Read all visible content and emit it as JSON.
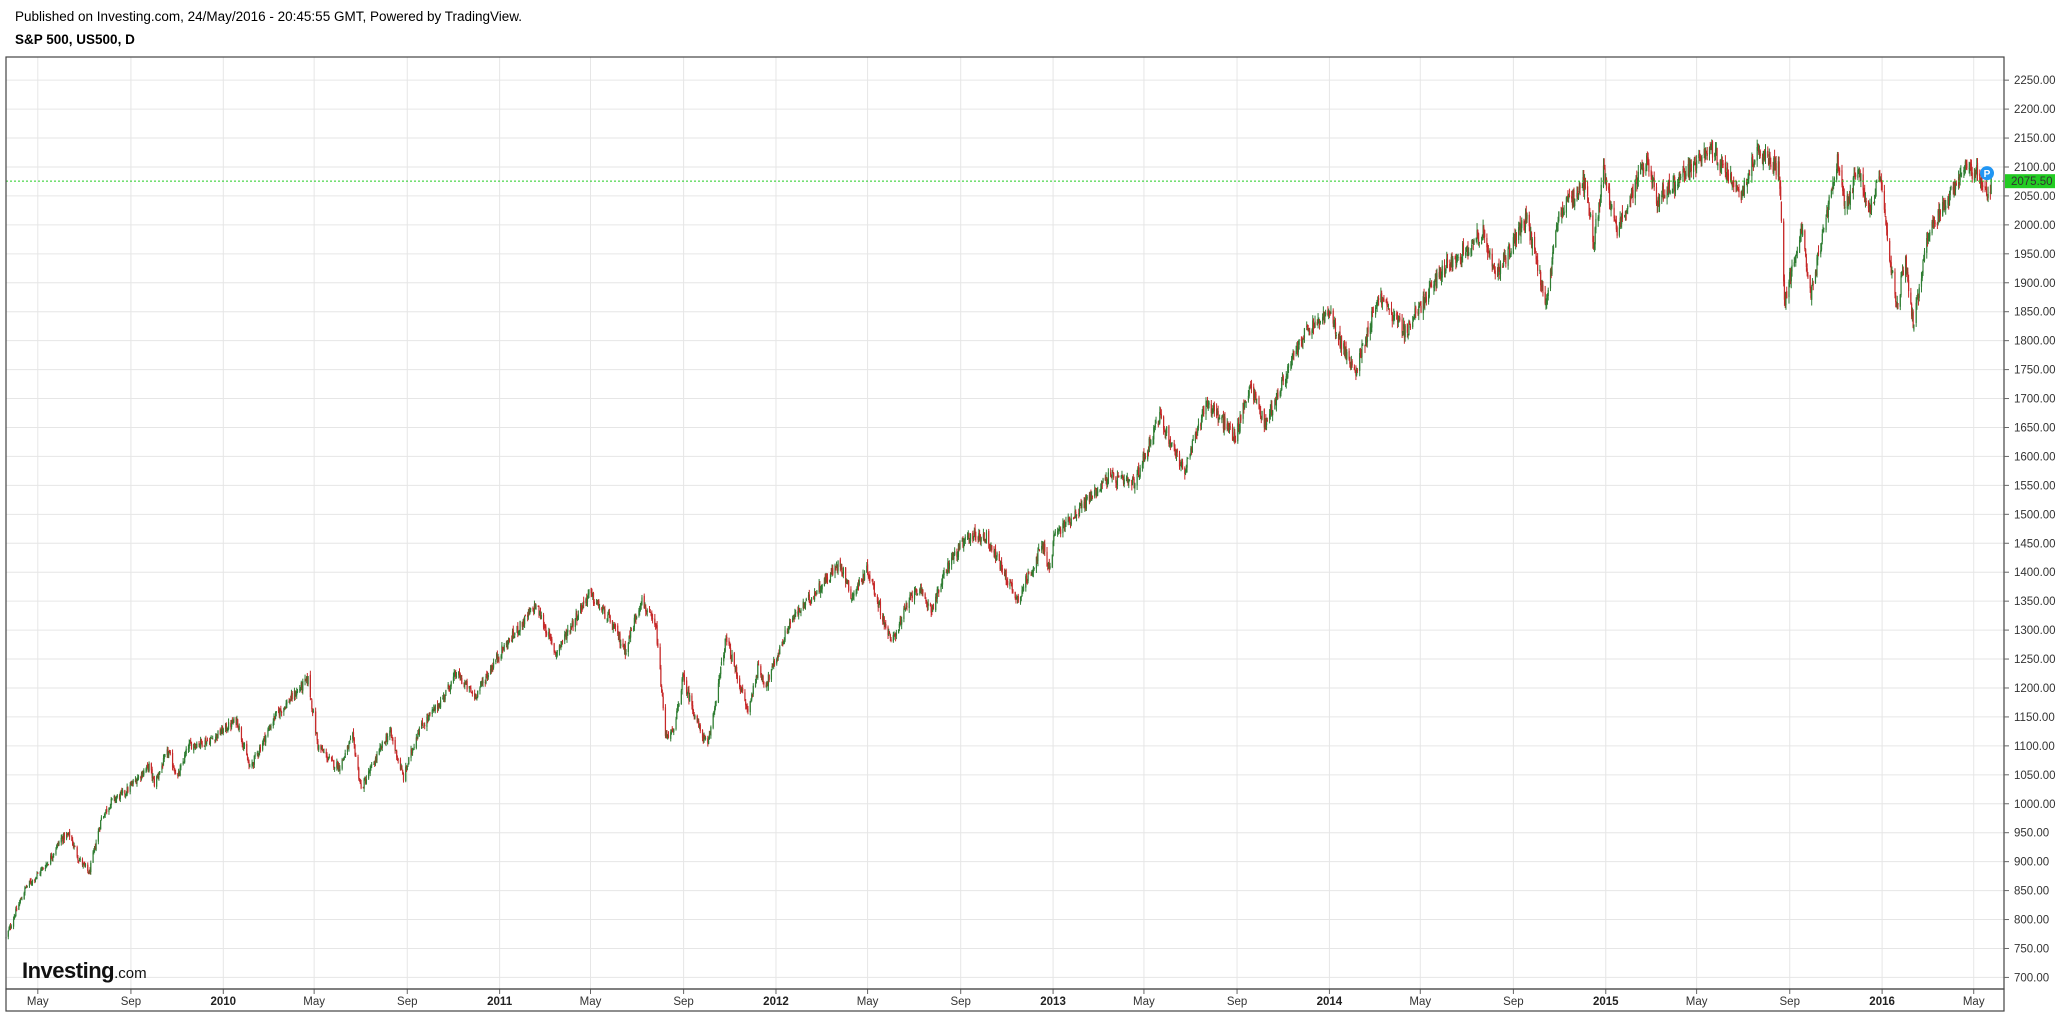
{
  "header": {
    "published": "Published on Investing.com, 24/May/2016 - 20:45:55 GMT, Powered by TradingView.",
    "symbol": "S&P 500, US500, D"
  },
  "logo": {
    "main": "Investing",
    "suffix": ".com"
  },
  "colors": {
    "up": "#2e7d32",
    "down": "#c62828",
    "last_line": "#22cc22",
    "price_tag": "#22cc22",
    "marker": "#2196f3",
    "grid": "#e6e6e6"
  },
  "chart_data": {
    "type": "candlestick",
    "title": "S&P 500, US500, D",
    "last_price": 2075.5,
    "last_price_label": "2075.50",
    "marker_label": "P",
    "ylim": [
      680,
      2290
    ],
    "y_ticks": [
      "700.00",
      "750.00",
      "800.00",
      "850.00",
      "900.00",
      "950.00",
      "1000.00",
      "1050.00",
      "1100.00",
      "1150.00",
      "1200.00",
      "1250.00",
      "1300.00",
      "1350.00",
      "1400.00",
      "1450.00",
      "1500.00",
      "1550.00",
      "1600.00",
      "1650.00",
      "1700.00",
      "1750.00",
      "1800.00",
      "1850.00",
      "1900.00",
      "1950.00",
      "2000.00",
      "2050.00",
      "2100.00",
      "2150.00",
      "2200.00",
      "2250.00"
    ],
    "x_range": [
      "2009-03-20",
      "2016-06-10"
    ],
    "x_ticks": [
      {
        "label": "May",
        "date": "2009-05-01",
        "year": false
      },
      {
        "label": "Sep",
        "date": "2009-09-01",
        "year": false
      },
      {
        "label": "2010",
        "date": "2010-01-01",
        "year": true
      },
      {
        "label": "May",
        "date": "2010-05-01",
        "year": false
      },
      {
        "label": "Sep",
        "date": "2010-09-01",
        "year": false
      },
      {
        "label": "2011",
        "date": "2011-01-01",
        "year": true
      },
      {
        "label": "May",
        "date": "2011-05-01",
        "year": false
      },
      {
        "label": "Sep",
        "date": "2011-09-01",
        "year": false
      },
      {
        "label": "2012",
        "date": "2012-01-01",
        "year": true
      },
      {
        "label": "May",
        "date": "2012-05-01",
        "year": false
      },
      {
        "label": "Sep",
        "date": "2012-09-01",
        "year": false
      },
      {
        "label": "2013",
        "date": "2013-01-01",
        "year": true
      },
      {
        "label": "May",
        "date": "2013-05-01",
        "year": false
      },
      {
        "label": "Sep",
        "date": "2013-09-01",
        "year": false
      },
      {
        "label": "2014",
        "date": "2014-01-01",
        "year": true
      },
      {
        "label": "May",
        "date": "2014-05-01",
        "year": false
      },
      {
        "label": "Sep",
        "date": "2014-09-01",
        "year": false
      },
      {
        "label": "2015",
        "date": "2015-01-01",
        "year": true
      },
      {
        "label": "May",
        "date": "2015-05-01",
        "year": false
      },
      {
        "label": "Sep",
        "date": "2015-09-01",
        "year": false
      },
      {
        "label": "2016",
        "date": "2016-01-01",
        "year": true
      },
      {
        "label": "May",
        "date": "2016-05-01",
        "year": false
      }
    ],
    "close_path": [
      [
        "2009-03-20",
        768
      ],
      [
        "2009-04-01",
        810
      ],
      [
        "2009-04-15",
        855
      ],
      [
        "2009-05-01",
        878
      ],
      [
        "2009-05-15",
        900
      ],
      [
        "2009-06-01",
        940
      ],
      [
        "2009-06-12",
        946
      ],
      [
        "2009-06-24",
        905
      ],
      [
        "2009-07-08",
        880
      ],
      [
        "2009-07-24",
        975
      ],
      [
        "2009-08-07",
        1005
      ],
      [
        "2009-08-25",
        1020
      ],
      [
        "2009-09-10",
        1045
      ],
      [
        "2009-09-25",
        1065
      ],
      [
        "2009-10-02",
        1035
      ],
      [
        "2009-10-20",
        1090
      ],
      [
        "2009-11-02",
        1045
      ],
      [
        "2009-11-16",
        1100
      ],
      [
        "2009-12-15",
        1110
      ],
      [
        "2010-01-19",
        1145
      ],
      [
        "2010-02-05",
        1060
      ],
      [
        "2010-03-10",
        1150
      ],
      [
        "2010-04-23",
        1215
      ],
      [
        "2010-05-06",
        1100
      ],
      [
        "2010-05-25",
        1070
      ],
      [
        "2010-06-04",
        1065
      ],
      [
        "2010-06-21",
        1115
      ],
      [
        "2010-07-02",
        1025
      ],
      [
        "2010-07-30",
        1100
      ],
      [
        "2010-08-09",
        1125
      ],
      [
        "2010-08-27",
        1045
      ],
      [
        "2010-09-15",
        1125
      ],
      [
        "2010-10-15",
        1176
      ],
      [
        "2010-11-05",
        1225
      ],
      [
        "2010-11-29",
        1185
      ],
      [
        "2010-12-31",
        1258
      ],
      [
        "2011-02-18",
        1343
      ],
      [
        "2011-03-16",
        1260
      ],
      [
        "2011-04-29",
        1363
      ],
      [
        "2011-05-25",
        1320
      ],
      [
        "2011-06-16",
        1265
      ],
      [
        "2011-07-07",
        1353
      ],
      [
        "2011-07-27",
        1300
      ],
      [
        "2011-08-08",
        1119
      ],
      [
        "2011-08-19",
        1123
      ],
      [
        "2011-08-31",
        1218
      ],
      [
        "2011-09-22",
        1129
      ],
      [
        "2011-10-03",
        1099
      ],
      [
        "2011-10-27",
        1285
      ],
      [
        "2011-11-25",
        1158
      ],
      [
        "2011-12-08",
        1234
      ],
      [
        "2011-12-19",
        1205
      ],
      [
        "2012-01-20",
        1315
      ],
      [
        "2012-03-26",
        1416
      ],
      [
        "2012-04-10",
        1358
      ],
      [
        "2012-05-01",
        1405
      ],
      [
        "2012-06-01",
        1278
      ],
      [
        "2012-07-03",
        1374
      ],
      [
        "2012-07-25",
        1337
      ],
      [
        "2012-08-17",
        1418
      ],
      [
        "2012-09-14",
        1465
      ],
      [
        "2012-10-05",
        1460
      ],
      [
        "2012-11-15",
        1353
      ],
      [
        "2012-12-18",
        1446
      ],
      [
        "2012-12-28",
        1402
      ],
      [
        "2013-01-02",
        1462
      ],
      [
        "2013-02-19",
        1530
      ],
      [
        "2013-03-14",
        1563
      ],
      [
        "2013-04-18",
        1552
      ],
      [
        "2013-05-21",
        1669
      ],
      [
        "2013-06-24",
        1573
      ],
      [
        "2013-07-22",
        1695
      ],
      [
        "2013-08-30",
        1633
      ],
      [
        "2013-09-18",
        1725
      ],
      [
        "2013-10-08",
        1656
      ],
      [
        "2013-11-27",
        1808
      ],
      [
        "2013-12-31",
        1848
      ],
      [
        "2014-02-03",
        1742
      ],
      [
        "2014-03-07",
        1878
      ],
      [
        "2014-04-11",
        1815
      ],
      [
        "2014-05-29",
        1920
      ],
      [
        "2014-06-30",
        1960
      ],
      [
        "2014-07-24",
        1988
      ],
      [
        "2014-08-07",
        1910
      ],
      [
        "2014-09-18",
        2011
      ],
      [
        "2014-10-15",
        1862
      ],
      [
        "2014-10-31",
        2018
      ],
      [
        "2014-12-05",
        2075
      ],
      [
        "2014-12-16",
        1972
      ],
      [
        "2014-12-29",
        2090
      ],
      [
        "2015-01-15",
        1992
      ],
      [
        "2015-02-25",
        2115
      ],
      [
        "2015-03-10",
        2044
      ],
      [
        "2015-05-20",
        2130
      ],
      [
        "2015-06-29",
        2057
      ],
      [
        "2015-07-20",
        2128
      ],
      [
        "2015-08-18",
        2096
      ],
      [
        "2015-08-25",
        1867
      ],
      [
        "2015-09-16",
        1995
      ],
      [
        "2015-09-29",
        1884
      ],
      [
        "2015-11-03",
        2110
      ],
      [
        "2015-11-13",
        2023
      ],
      [
        "2015-12-01",
        2102
      ],
      [
        "2015-12-14",
        2021
      ],
      [
        "2015-12-29",
        2078
      ],
      [
        "2016-01-20",
        1859
      ],
      [
        "2016-02-01",
        1939
      ],
      [
        "2016-02-11",
        1829
      ],
      [
        "2016-03-01",
        1978
      ],
      [
        "2016-04-20",
        2102
      ],
      [
        "2016-05-10",
        2084
      ],
      [
        "2016-05-19",
        2040
      ],
      [
        "2016-05-24",
        2075.5
      ]
    ]
  }
}
